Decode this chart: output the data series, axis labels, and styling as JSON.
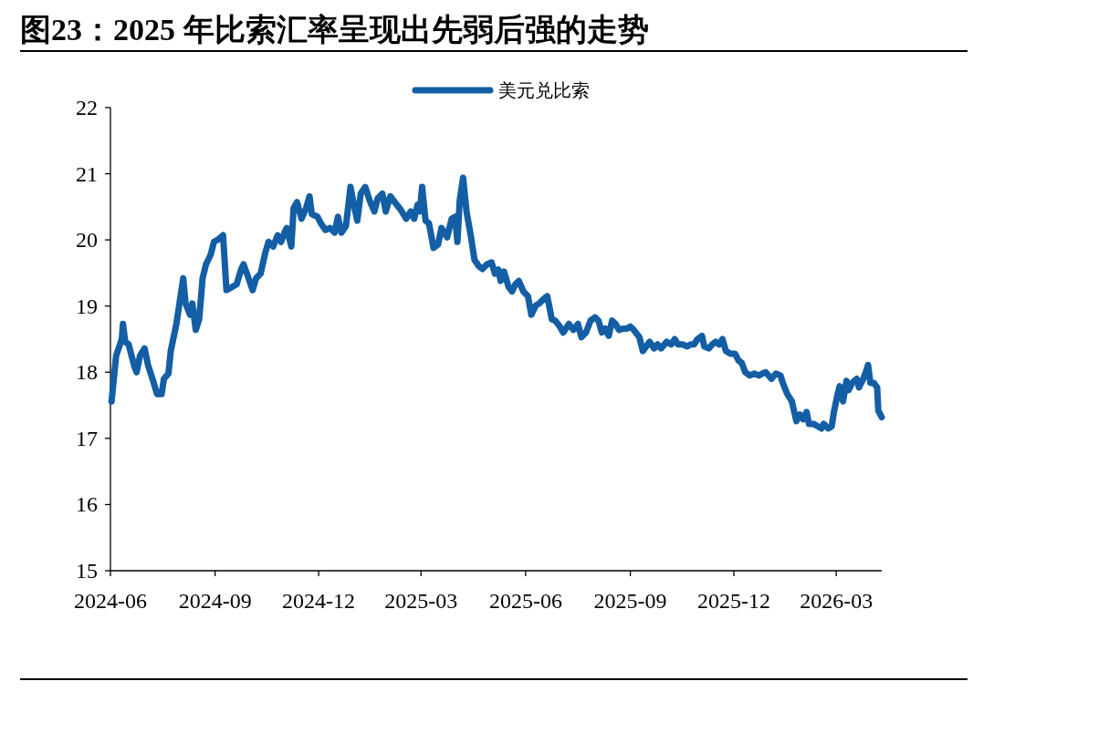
{
  "chart_data": {
    "type": "line",
    "title": "图23：2025 年比索汇率呈现出先弱后强的走势",
    "legend": "top",
    "grid": false,
    "marker": "none",
    "line_style": "solid",
    "xlim": [
      "2024-06-01",
      "2026-04-10"
    ],
    "xticks": [
      "2024-06",
      "2024-09",
      "2024-12",
      "2025-03",
      "2025-06",
      "2025-09",
      "2025-12",
      "2026-03"
    ],
    "ylim": [
      15,
      22
    ],
    "yticks": [
      15,
      16,
      17,
      18,
      19,
      20,
      21,
      22
    ],
    "series": [
      {
        "name": "美元兑比索",
        "color": "#135ea4",
        "x": [
          "2024-06-02",
          "2024-06-06",
          "2024-06-11",
          "2024-06-12",
          "2024-06-14",
          "2024-06-17",
          "2024-06-22",
          "2024-06-24",
          "2024-06-27",
          "2024-07-01",
          "2024-07-04",
          "2024-07-08",
          "2024-07-12",
          "2024-07-16",
          "2024-07-18",
          "2024-07-22",
          "2024-07-24",
          "2024-07-29",
          "2024-08-01",
          "2024-08-04",
          "2024-08-06",
          "2024-08-10",
          "2024-08-12",
          "2024-08-15",
          "2024-08-18",
          "2024-08-21",
          "2024-08-24",
          "2024-08-28",
          "2024-08-31",
          "2024-09-04",
          "2024-09-08",
          "2024-09-11",
          "2024-09-16",
          "2024-09-20",
          "2024-09-24",
          "2024-09-26",
          "2024-09-29",
          "2024-10-04",
          "2024-10-07",
          "2024-10-11",
          "2024-10-15",
          "2024-10-18",
          "2024-10-22",
          "2024-10-26",
          "2024-10-29",
          "2024-11-01",
          "2024-11-03",
          "2024-11-07",
          "2024-11-09",
          "2024-11-12",
          "2024-11-16",
          "2024-11-20",
          "2024-11-23",
          "2024-11-25",
          "2024-11-30",
          "2024-12-03",
          "2024-12-07",
          "2024-12-11",
          "2024-12-15",
          "2024-12-18",
          "2024-12-21",
          "2024-12-25",
          "2024-12-29",
          "2025-01-01",
          "2025-01-04",
          "2025-01-07",
          "2025-01-11",
          "2025-01-15",
          "2025-01-19",
          "2025-01-22",
          "2025-01-26",
          "2025-01-29",
          "2025-02-02",
          "2025-02-06",
          "2025-02-11",
          "2025-02-16",
          "2025-02-20",
          "2025-02-23",
          "2025-02-26",
          "2025-02-28",
          "2025-03-02",
          "2025-03-05",
          "2025-03-08",
          "2025-03-12",
          "2025-03-16",
          "2025-03-19",
          "2025-03-24",
          "2025-03-28",
          "2025-03-31",
          "2025-04-02",
          "2025-04-04",
          "2025-04-07",
          "2025-04-10",
          "2025-04-14",
          "2025-04-17",
          "2025-04-21",
          "2025-04-24",
          "2025-04-28",
          "2025-05-02",
          "2025-05-05",
          "2025-05-08",
          "2025-05-10",
          "2025-05-13",
          "2025-05-17",
          "2025-05-20",
          "2025-05-23",
          "2025-05-26",
          "2025-05-30",
          "2025-06-03",
          "2025-06-06",
          "2025-06-10",
          "2025-06-13",
          "2025-06-17",
          "2025-06-20",
          "2025-06-24",
          "2025-06-27",
          "2025-07-01",
          "2025-07-04",
          "2025-07-09",
          "2025-07-13",
          "2025-07-17",
          "2025-07-20",
          "2025-07-24",
          "2025-07-28",
          "2025-08-01",
          "2025-08-04",
          "2025-08-07",
          "2025-08-10",
          "2025-08-13",
          "2025-08-16",
          "2025-08-19",
          "2025-08-22",
          "2025-08-26",
          "2025-08-29",
          "2025-09-01",
          "2025-09-04",
          "2025-09-09",
          "2025-09-12",
          "2025-09-15",
          "2025-09-18",
          "2025-09-22",
          "2025-09-25",
          "2025-09-28",
          "2025-10-03",
          "2025-10-07",
          "2025-10-10",
          "2025-10-13",
          "2025-10-17",
          "2025-10-21",
          "2025-10-24",
          "2025-10-27",
          "2025-10-30",
          "2025-11-03",
          "2025-11-05",
          "2025-11-09",
          "2025-11-12",
          "2025-11-15",
          "2025-11-18",
          "2025-11-21",
          "2025-11-24",
          "2025-11-28",
          "2025-12-02",
          "2025-12-05",
          "2025-12-08",
          "2025-12-11",
          "2025-12-15",
          "2025-12-19",
          "2025-12-23",
          "2025-12-26",
          "2025-12-29",
          "2026-01-03",
          "2026-01-07",
          "2026-01-11",
          "2026-01-13",
          "2026-01-17",
          "2026-01-21",
          "2026-01-25",
          "2026-01-28",
          "2026-01-31",
          "2026-02-03",
          "2026-02-05",
          "2026-02-09",
          "2026-02-13",
          "2026-02-16",
          "2026-02-18",
          "2026-02-22",
          "2026-02-25",
          "2026-02-27",
          "2026-03-02",
          "2026-03-04",
          "2026-03-07",
          "2026-03-10",
          "2026-03-12",
          "2026-03-15",
          "2026-03-19",
          "2026-03-21",
          "2026-03-24",
          "2026-03-27",
          "2026-03-29",
          "2026-03-31",
          "2026-04-03",
          "2026-04-06",
          "2026-04-07",
          "2026-04-10"
        ],
        "values": [
          17.56,
          18.25,
          18.5,
          18.73,
          18.46,
          18.42,
          18.09,
          18.0,
          18.25,
          18.36,
          18.11,
          17.9,
          17.67,
          17.67,
          17.9,
          17.98,
          18.32,
          18.73,
          19.08,
          19.42,
          19.04,
          18.87,
          19.04,
          18.64,
          18.8,
          19.42,
          19.63,
          19.77,
          19.97,
          20.01,
          20.07,
          19.24,
          19.29,
          19.33,
          19.56,
          19.63,
          19.49,
          19.24,
          19.42,
          19.49,
          19.8,
          19.97,
          19.9,
          20.07,
          19.97,
          20.11,
          20.18,
          19.9,
          20.48,
          20.57,
          20.32,
          20.48,
          20.66,
          20.39,
          20.35,
          20.25,
          20.15,
          20.18,
          20.11,
          20.35,
          20.11,
          20.21,
          20.8,
          20.53,
          20.29,
          20.7,
          20.8,
          20.59,
          20.43,
          20.63,
          20.7,
          20.43,
          20.66,
          20.57,
          20.46,
          20.32,
          20.43,
          20.32,
          20.53,
          20.43,
          20.8,
          20.29,
          20.25,
          19.88,
          19.93,
          20.18,
          20.04,
          20.32,
          20.35,
          19.97,
          20.59,
          20.94,
          20.43,
          20.04,
          19.7,
          19.6,
          19.56,
          19.63,
          19.66,
          19.49,
          19.55,
          19.38,
          19.52,
          19.29,
          19.22,
          19.33,
          19.38,
          19.22,
          19.15,
          18.87,
          19.01,
          19.04,
          19.11,
          19.15,
          18.8,
          18.78,
          18.69,
          18.6,
          18.73,
          18.64,
          18.73,
          18.53,
          18.6,
          18.78,
          18.83,
          18.78,
          18.6,
          18.66,
          18.55,
          18.78,
          18.73,
          18.64,
          18.66,
          18.66,
          18.69,
          18.64,
          18.53,
          18.32,
          18.39,
          18.46,
          18.36,
          18.42,
          18.36,
          18.46,
          18.42,
          18.5,
          18.42,
          18.42,
          18.39,
          18.42,
          18.42,
          18.5,
          18.55,
          18.39,
          18.36,
          18.42,
          18.46,
          18.42,
          18.5,
          18.32,
          18.28,
          18.28,
          18.18,
          18.14,
          18.0,
          17.95,
          17.98,
          17.95,
          17.98,
          18.0,
          17.9,
          17.98,
          17.95,
          17.84,
          17.67,
          17.56,
          17.26,
          17.36,
          17.29,
          17.4,
          17.22,
          17.22,
          17.18,
          17.15,
          17.22,
          17.15,
          17.18,
          17.4,
          17.65,
          17.79,
          17.56,
          17.87,
          17.73,
          17.84,
          17.9,
          17.77,
          17.87,
          18.0,
          18.11,
          17.84,
          17.84,
          17.77,
          17.42,
          17.32
        ]
      }
    ]
  }
}
